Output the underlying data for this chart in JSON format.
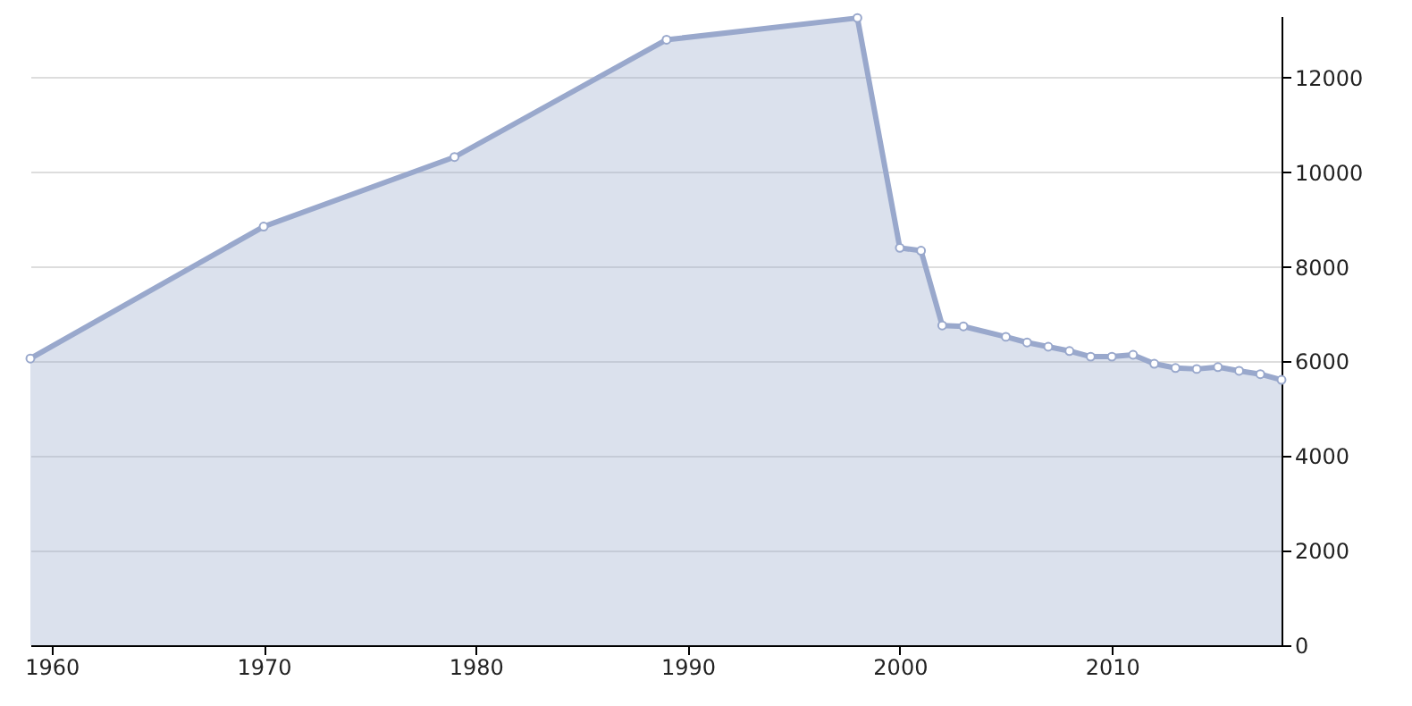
{
  "chart_data": {
    "type": "area",
    "x": [
      1959,
      1970,
      1979,
      1989,
      1998,
      2000,
      2001,
      2002,
      2003,
      2005,
      2006,
      2007,
      2008,
      2009,
      2010,
      2011,
      2012,
      2013,
      2014,
      2015,
      2016,
      2017,
      2018
    ],
    "series": [
      {
        "color": "#99a8cc",
        "values": [
          6060,
          8850,
          10320,
          12800,
          13260,
          8400,
          8340,
          6760,
          6740,
          6520,
          6400,
          6310,
          6220,
          6100,
          6100,
          6140,
          5950,
          5860,
          5840,
          5880,
          5800,
          5730,
          5610
        ]
      }
    ],
    "xlim": [
      1959,
      2018
    ],
    "xticks": [
      1960,
      1970,
      1980,
      1990,
      2000,
      2010
    ],
    "ylim": [
      0,
      13300
    ],
    "yticks": [
      0,
      2000,
      4000,
      6000,
      8000,
      10000,
      12000
    ],
    "grid": "y",
    "marker": "circle",
    "line_style": "solid"
  }
}
